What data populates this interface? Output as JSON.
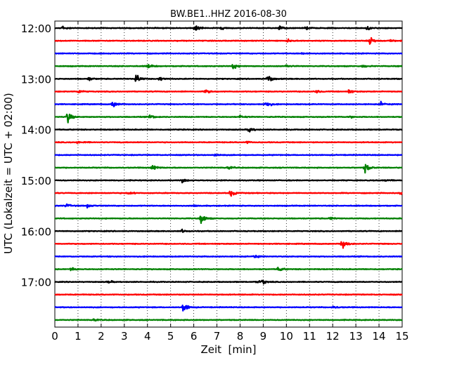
{
  "chart_data": {
    "type": "line",
    "title": "BW.BE1..HHZ 2016-08-30",
    "xlabel": "Zeit  [min]",
    "ylabel": "UTC (Lokalzeit = UTC + 02:00)",
    "xlim": [
      0,
      15
    ],
    "x_ticks": [
      "0",
      "1",
      "2",
      "3",
      "4",
      "5",
      "6",
      "7",
      "8",
      "9",
      "10",
      "11",
      "12",
      "13",
      "14",
      "15"
    ],
    "y_tick_labels": [
      "12:00",
      "13:00",
      "14:00",
      "15:00",
      "16:00",
      "17:00"
    ],
    "grid": "vertical dotted",
    "color_cycle": [
      "#000000",
      "#ff0000",
      "#0000ff",
      "#008000"
    ],
    "row_interval_minutes": 15,
    "series": [
      {
        "start": "12:00",
        "color": "#000000",
        "events": [
          {
            "t": 0.3,
            "a": 0.5
          },
          {
            "t": 6.05,
            "a": 0.8
          },
          {
            "t": 7.2,
            "a": 0.3
          },
          {
            "t": 9.7,
            "a": 0.4
          },
          {
            "t": 10.85,
            "a": 0.3
          },
          {
            "t": 13.5,
            "a": 0.4
          }
        ]
      },
      {
        "start": "12:15",
        "color": "#ff0000",
        "events": [
          {
            "t": 10.05,
            "a": 0.3
          },
          {
            "t": 13.6,
            "a": 1.0
          },
          {
            "t": 14.5,
            "a": 0.2
          }
        ]
      },
      {
        "start": "12:30",
        "color": "#0000ff",
        "events": [
          {
            "t": 10.7,
            "a": 0.2
          }
        ]
      },
      {
        "start": "12:45",
        "color": "#008000",
        "events": [
          {
            "t": 4.0,
            "a": 0.6
          },
          {
            "t": 7.7,
            "a": 0.6
          },
          {
            "t": 10.0,
            "a": 0.3
          },
          {
            "t": 13.3,
            "a": 0.3
          }
        ]
      },
      {
        "start": "13:00",
        "color": "#000000",
        "events": [
          {
            "t": 1.45,
            "a": 0.4
          },
          {
            "t": 3.5,
            "a": 1.1
          },
          {
            "t": 4.5,
            "a": 0.5
          },
          {
            "t": 9.2,
            "a": 1.0
          }
        ]
      },
      {
        "start": "13:15",
        "color": "#ff0000",
        "events": [
          {
            "t": 1.0,
            "a": 0.4
          },
          {
            "t": 6.5,
            "a": 0.5
          },
          {
            "t": 11.3,
            "a": 0.3
          },
          {
            "t": 12.7,
            "a": 0.4
          }
        ]
      },
      {
        "start": "13:30",
        "color": "#0000ff",
        "events": [
          {
            "t": 2.5,
            "a": 0.8
          },
          {
            "t": 9.1,
            "a": 0.9
          },
          {
            "t": 14.1,
            "a": 0.5
          }
        ]
      },
      {
        "start": "13:45",
        "color": "#008000",
        "events": [
          {
            "t": 0.55,
            "a": 1.3
          },
          {
            "t": 4.1,
            "a": 0.5
          },
          {
            "t": 8.0,
            "a": 0.3
          },
          {
            "t": 12.7,
            "a": 0.3
          }
        ]
      },
      {
        "start": "14:00",
        "color": "#000000",
        "events": [
          {
            "t": 8.4,
            "a": 0.7
          }
        ]
      },
      {
        "start": "14:15",
        "color": "#ff0000",
        "events": [
          {
            "t": 1.0,
            "a": 0.3
          },
          {
            "t": 8.3,
            "a": 0.2
          }
        ]
      },
      {
        "start": "14:30",
        "color": "#0000ff",
        "events": [
          {
            "t": 6.9,
            "a": 0.3
          }
        ]
      },
      {
        "start": "14:45",
        "color": "#008000",
        "events": [
          {
            "t": 4.2,
            "a": 0.7
          },
          {
            "t": 7.5,
            "a": 0.3
          },
          {
            "t": 13.4,
            "a": 1.1
          }
        ]
      },
      {
        "start": "15:00",
        "color": "#000000",
        "events": [
          {
            "t": 5.5,
            "a": 0.4
          },
          {
            "t": 14.3,
            "a": 0.3
          }
        ]
      },
      {
        "start": "15:15",
        "color": "#ff0000",
        "events": [
          {
            "t": 3.2,
            "a": 0.3
          },
          {
            "t": 7.6,
            "a": 0.8
          },
          {
            "t": 14.9,
            "a": 0.3
          }
        ]
      },
      {
        "start": "15:30",
        "color": "#0000ff",
        "events": [
          {
            "t": 0.5,
            "a": 0.4
          },
          {
            "t": 1.4,
            "a": 0.3
          },
          {
            "t": 6.0,
            "a": 0.2
          }
        ]
      },
      {
        "start": "15:45",
        "color": "#008000",
        "events": [
          {
            "t": 6.3,
            "a": 1.3
          },
          {
            "t": 11.9,
            "a": 0.3
          }
        ]
      },
      {
        "start": "16:00",
        "color": "#000000",
        "events": [
          {
            "t": 5.5,
            "a": 0.3
          }
        ]
      },
      {
        "start": "16:15",
        "color": "#ff0000",
        "events": [
          {
            "t": 12.4,
            "a": 1.2
          }
        ]
      },
      {
        "start": "16:30",
        "color": "#0000ff",
        "events": [
          {
            "t": 8.6,
            "a": 0.4
          }
        ]
      },
      {
        "start": "16:45",
        "color": "#008000",
        "events": [
          {
            "t": 0.7,
            "a": 0.4
          },
          {
            "t": 9.65,
            "a": 0.6
          }
        ]
      },
      {
        "start": "17:00",
        "color": "#000000",
        "events": [
          {
            "t": 2.3,
            "a": 0.3
          },
          {
            "t": 8.7,
            "a": 0.3
          },
          {
            "t": 8.95,
            "a": 0.5
          }
        ]
      },
      {
        "start": "17:15",
        "color": "#ff0000",
        "events": []
      },
      {
        "start": "17:30",
        "color": "#0000ff",
        "events": [
          {
            "t": 5.55,
            "a": 1.2
          },
          {
            "t": 12.0,
            "a": 0.3
          }
        ]
      },
      {
        "start": "17:45",
        "color": "#008000",
        "events": [
          {
            "t": 1.7,
            "a": 0.2
          }
        ]
      }
    ]
  }
}
